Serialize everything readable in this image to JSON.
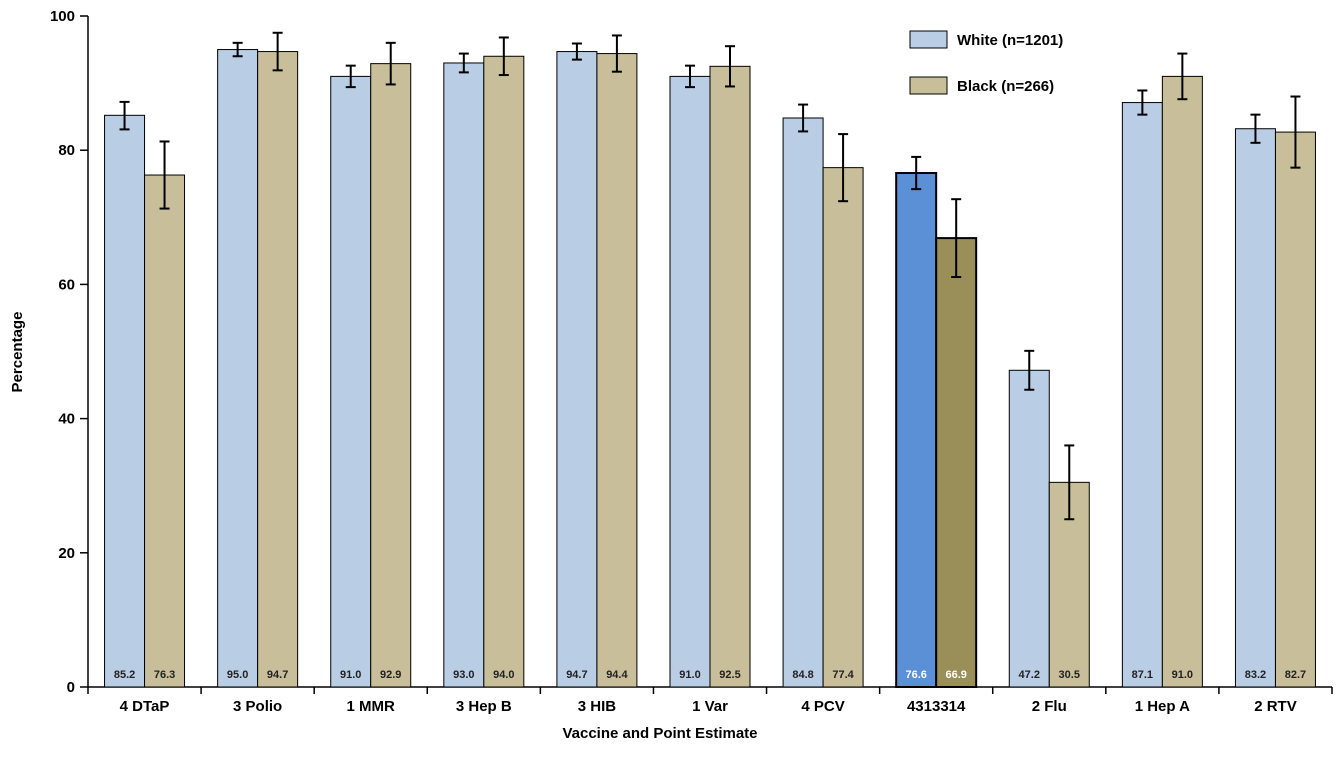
{
  "chart_data": {
    "type": "bar",
    "xlabel": "Vaccine and Point Estimate",
    "ylabel": "Percentage",
    "ylim": [
      0,
      100
    ],
    "yticks": [
      0,
      20,
      40,
      60,
      80,
      100
    ],
    "grid": false,
    "legend_position": "top-right",
    "categories": [
      "4 DTaP",
      "3 Polio",
      "1 MMR",
      "3 Hep B",
      "3 HIB",
      "1 Var",
      "4 PCV",
      "4313314",
      "2 Flu",
      "1 Hep A",
      "2 RTV"
    ],
    "highlighted_category": "4313314",
    "series": [
      {
        "name": "White (n=1201)",
        "values": [
          85.2,
          95.0,
          91.0,
          93.0,
          94.7,
          91.0,
          84.8,
          76.6,
          47.2,
          87.1,
          83.2
        ],
        "labels": [
          "85.2",
          "95.0",
          "91.0",
          "93.0",
          "94.7",
          "91.0",
          "84.8",
          "76.6",
          "47.2",
          "87.1",
          "83.2"
        ],
        "err_low": [
          83.1,
          94.0,
          89.4,
          91.6,
          93.5,
          89.4,
          82.8,
          74.2,
          44.3,
          85.3,
          81.1
        ],
        "err_high": [
          87.2,
          96.0,
          92.6,
          94.4,
          95.9,
          92.6,
          86.8,
          79.0,
          50.1,
          88.9,
          85.3
        ],
        "color": "#b9cde4",
        "highlight_color": "#5b8fd6"
      },
      {
        "name": "Black (n=266)",
        "values": [
          76.3,
          94.7,
          92.9,
          94.0,
          94.4,
          92.5,
          77.4,
          66.9,
          30.5,
          91.0,
          82.7
        ],
        "labels": [
          "76.3",
          "94.7",
          "92.9",
          "94.0",
          "94.4",
          "92.5",
          "77.4",
          "66.9",
          "30.5",
          "91.0",
          "82.7"
        ],
        "err_low": [
          71.3,
          91.9,
          89.8,
          91.2,
          91.7,
          89.5,
          72.4,
          61.1,
          25.0,
          87.6,
          77.4
        ],
        "err_high": [
          81.3,
          97.5,
          96.0,
          96.8,
          97.1,
          95.5,
          82.4,
          72.7,
          36.0,
          94.4,
          88.0
        ],
        "color": "#c8bf9a",
        "highlight_color": "#9a8f58"
      }
    ]
  }
}
